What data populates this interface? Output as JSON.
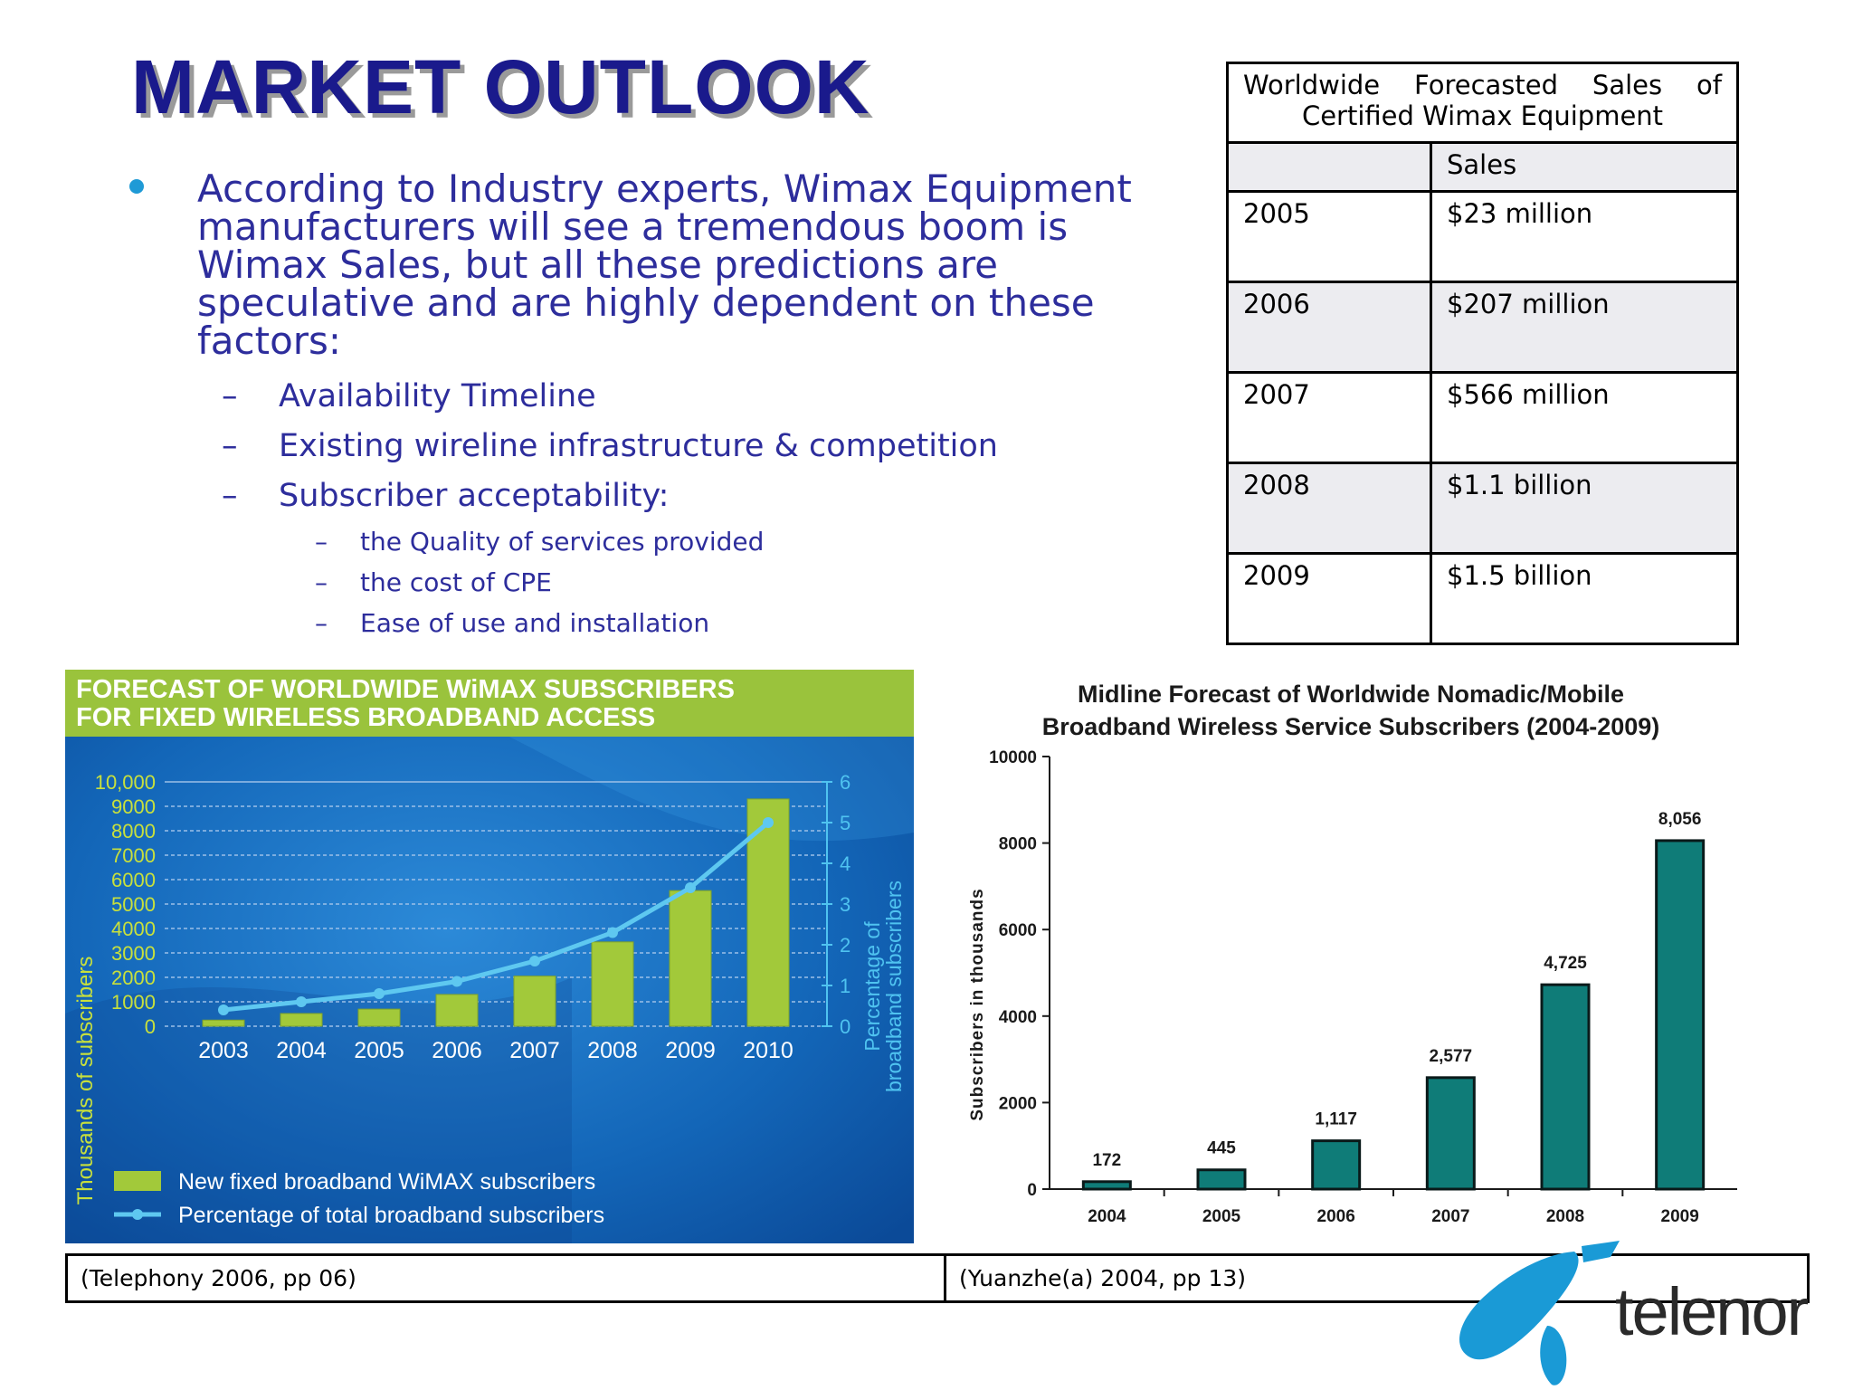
{
  "slide": {
    "title": "MARKET OUTLOOK",
    "bullet": "According to Industry experts, Wimax Equipment manufacturers will see a tremendous boom is Wimax Sales, but all these predictions are speculative and are highly dependent on these factors:",
    "sub_items": [
      "Availability Timeline",
      "Existing wireline infrastructure & competition",
      "Subscriber acceptability:"
    ],
    "sub_sub_items": [
      "the Quality of services provided",
      "the cost of CPE",
      "Ease of use and installation"
    ],
    "dash": "–"
  },
  "sales_table": {
    "caption": "Worldwide Forecasted Sales of Certified Wimax Equipment",
    "caption_line1": "Worldwide Forecasted Sales of",
    "caption_line2": "Certified Wimax Equipment",
    "header": [
      "",
      "Sales"
    ],
    "rows": [
      {
        "year": "2005",
        "sales": "$23 million"
      },
      {
        "year": "2006",
        "sales": "$207 million"
      },
      {
        "year": "2007",
        "sales": "$566 million"
      },
      {
        "year": "2008",
        "sales": "$1.1 billion"
      },
      {
        "year": "2009",
        "sales": "$1.5 billion"
      }
    ]
  },
  "chart_data": [
    {
      "type": "bar",
      "title": "FORECAST OF WORLDWIDE WiMAX SUBSCRIBERS FOR FIXED WIRELESS BROADBAND ACCESS",
      "title_line1": "FORECAST OF WORLDWIDE WiMAX SUBSCRIBERS",
      "title_line2": "FOR FIXED WIRELESS BROADBAND ACCESS",
      "categories": [
        "2003",
        "2004",
        "2005",
        "2006",
        "2007",
        "2008",
        "2009",
        "2010"
      ],
      "series": [
        {
          "name": "New fixed broadband WiMAX subscribers",
          "type": "bar",
          "axis": "left",
          "values": [
            250,
            520,
            700,
            1300,
            2050,
            3450,
            5550,
            9300
          ]
        },
        {
          "name": "Percentage of total broadband subscribers",
          "type": "line",
          "axis": "right",
          "values": [
            0.4,
            0.6,
            0.8,
            1.1,
            1.6,
            2.3,
            3.4,
            5.0
          ]
        }
      ],
      "ylabel": "Thousands of subscribers",
      "y2label": "Percentage of broadband subscribers",
      "y2label_line1": "Percentage of",
      "y2label_line2": "broadband subscribers",
      "ylim": [
        0,
        10000
      ],
      "y2lim": [
        0,
        6
      ],
      "yticks": [
        "0",
        "1000",
        "2000",
        "3000",
        "4000",
        "5000",
        "6000",
        "7000",
        "8000",
        "9000",
        "10,000"
      ],
      "y2ticks": [
        "0",
        "1",
        "2",
        "3",
        "4",
        "5",
        "6"
      ],
      "grid": true,
      "legend_position": "bottom-left",
      "colors": {
        "background": "#1560b0",
        "bar": "#a2c93a",
        "line": "#5ec8f0",
        "title_bg": "#9ac33c",
        "axis_text": "#c8e03c",
        "right_axis_text": "#4fc3f0"
      }
    },
    {
      "type": "bar",
      "title": "Midline Forecast of Worldwide Nomadic/Mobile Broadband Wireless Service Subscribers (2004-2009)",
      "title_line1": "Midline Forecast of Worldwide Nomadic/Mobile",
      "title_line2": "Broadband Wireless Service Subscribers (2004-2009)",
      "categories": [
        "2004",
        "2005",
        "2006",
        "2007",
        "2008",
        "2009"
      ],
      "values": [
        172,
        445,
        1117,
        2577,
        4725,
        8056
      ],
      "data_labels": [
        "172",
        "445",
        "1,117",
        "2,577",
        "4,725",
        "8,056"
      ],
      "ylabel": "Subscribers in thousands",
      "xlabel": "",
      "ylim": [
        0,
        10000
      ],
      "yticks": [
        "0",
        "2000",
        "4000",
        "6000",
        "8000",
        "10000"
      ],
      "grid": false,
      "colors": {
        "bar": "#0f7c78"
      }
    }
  ],
  "footer": {
    "left_citation": "(Telephony 2006, pp 06)",
    "right_citation": "(Yuanzhe(a) 2004, pp 13)"
  },
  "logo": {
    "text": "telenor",
    "icon": "telenor-propeller-icon",
    "color": "#1a9ad6"
  }
}
